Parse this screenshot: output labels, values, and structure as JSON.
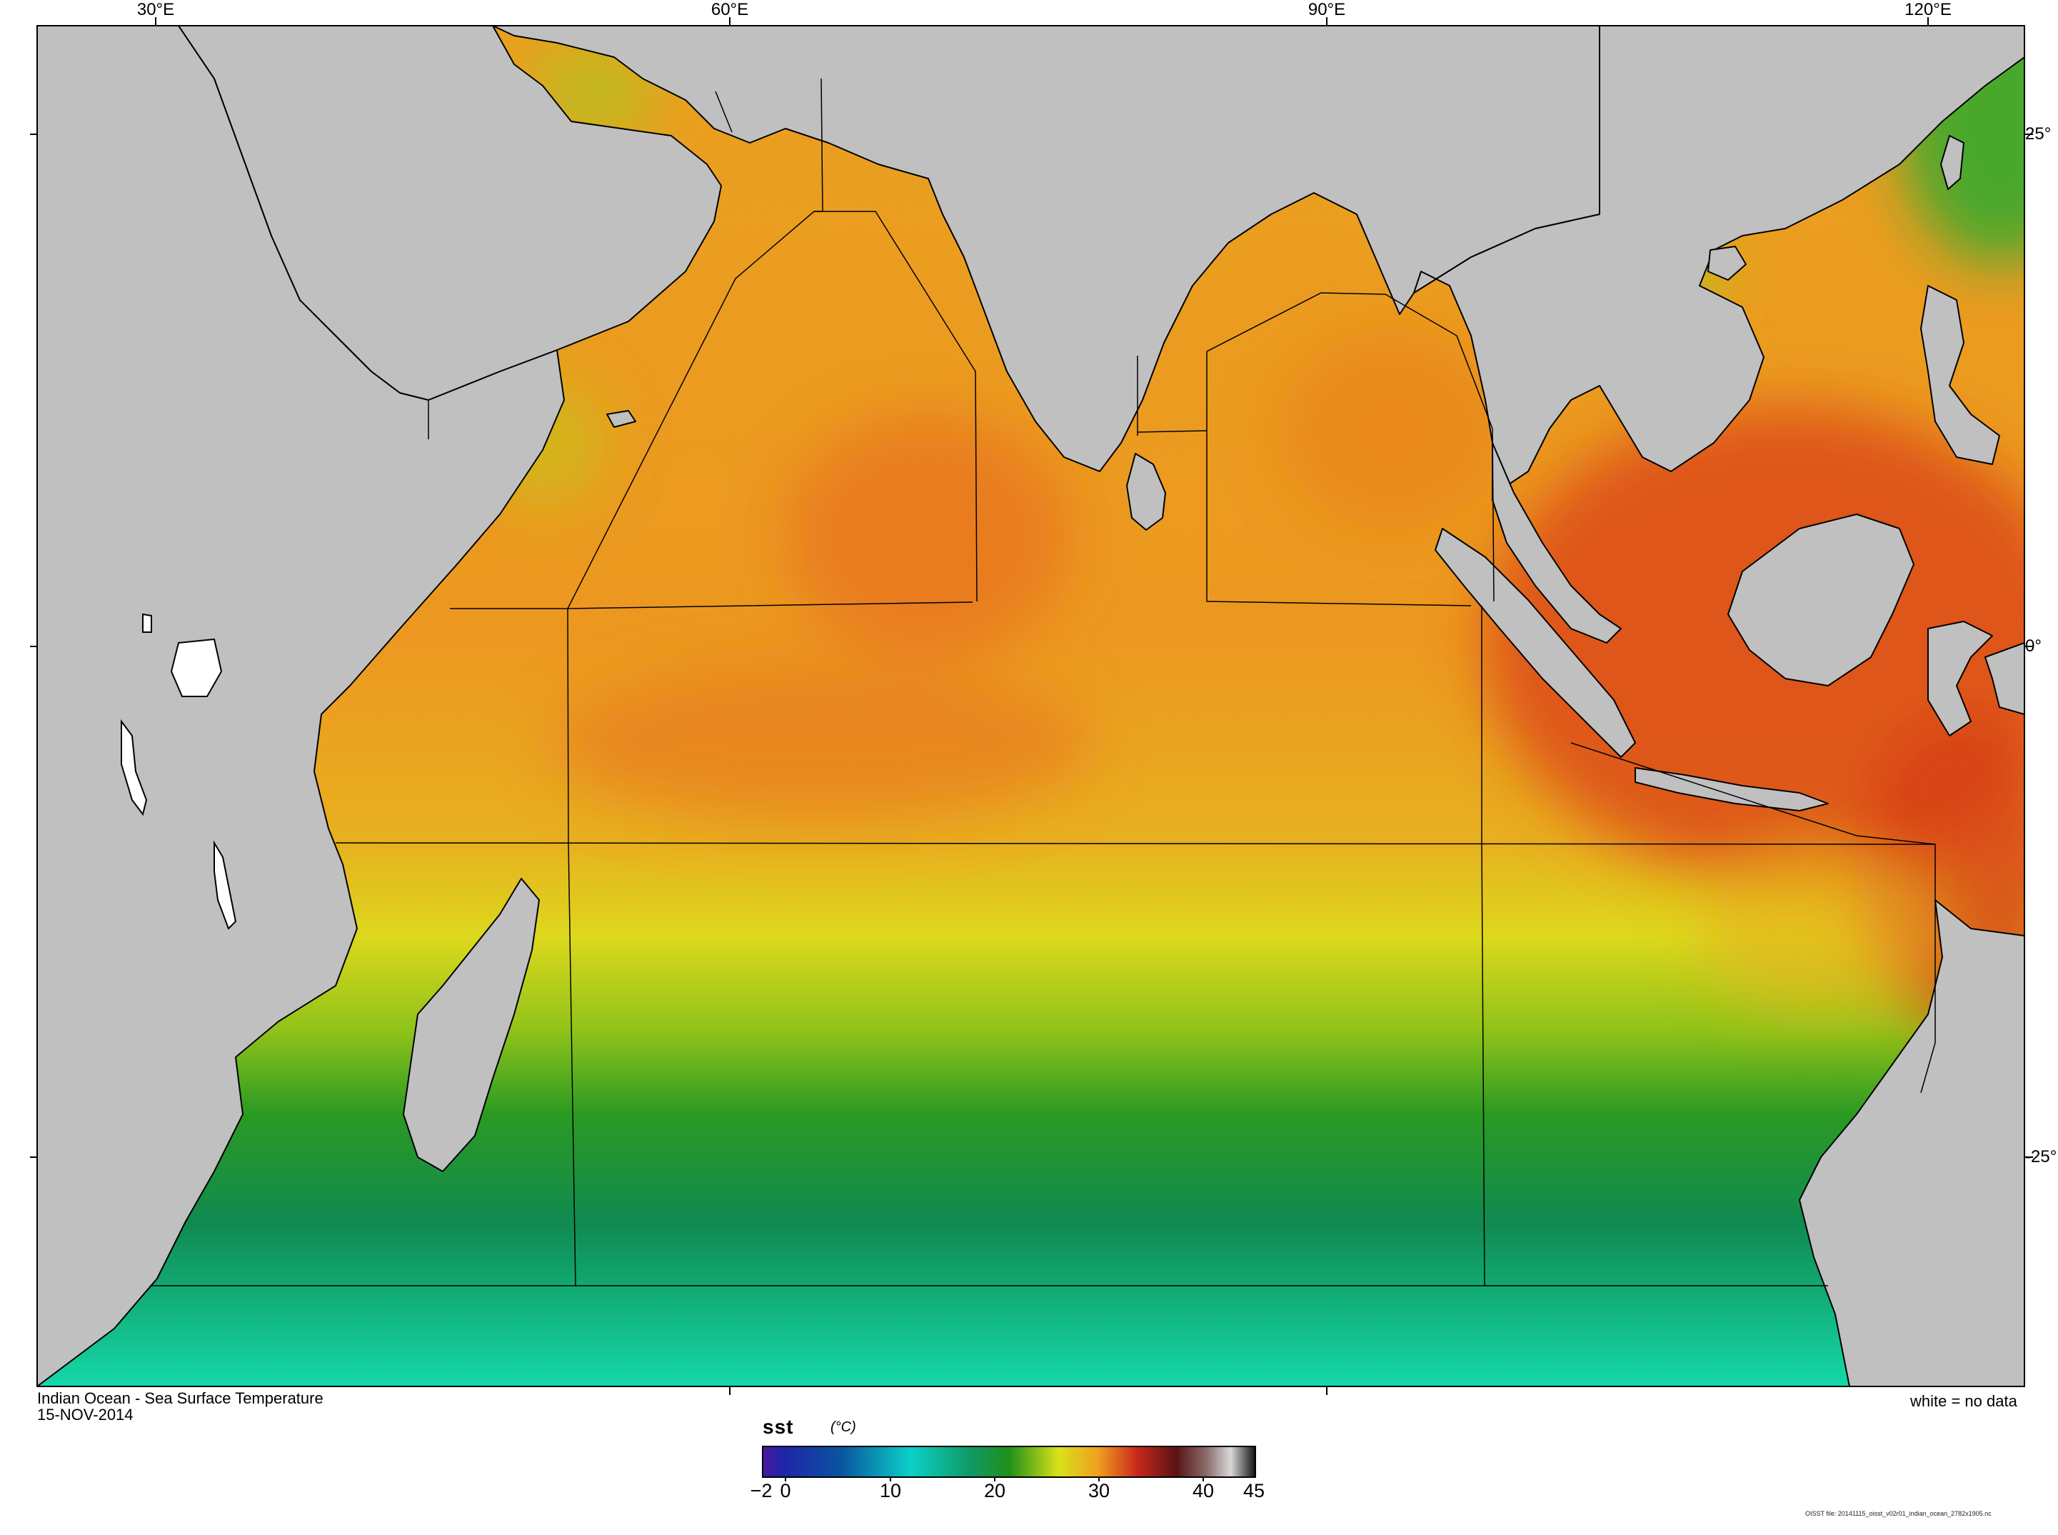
{
  "map": {
    "title": "Indian Ocean - Sea Surface Temperature",
    "date": "15-NOV-2014",
    "no_data_note": "white = no data",
    "footer": "OISST file: 20141115_oisst_v02r01_indian_ocean_2782x1905.nc",
    "longitude_labels": [
      "30°E",
      "60°E",
      "90°E",
      "120°E"
    ],
    "latitude_labels": [
      "25°",
      "0°",
      "-25°"
    ],
    "land_color": "#c0c0c0",
    "no_data_color": "#ffffff"
  },
  "colorbar": {
    "variable": "sst",
    "units": "(°C)",
    "tick_labels": [
      "−2",
      "0",
      "10",
      "20",
      "30",
      "40",
      "45"
    ],
    "stops": [
      "#4b1a9c",
      "#1f24a8",
      "#0a55a0",
      "#0bd0c8",
      "#0f9a66",
      "#1f8f1a",
      "#d8e21a",
      "#f0a020",
      "#c8281c",
      "#5a1414",
      "#8a6a6a",
      "#d8d8d8",
      "#111111"
    ]
  }
}
